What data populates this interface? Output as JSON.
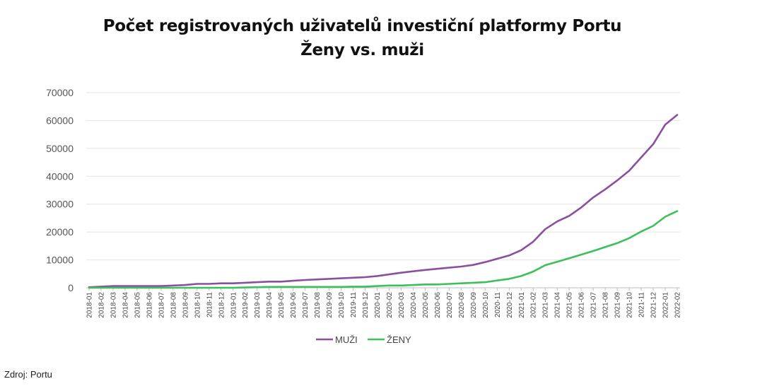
{
  "source": "Zdroj: Portu",
  "chart_data": {
    "type": "line",
    "title": "Počet registrovaných uživatelů investiční platformy Portu",
    "subtitle": "Ženy vs. muži",
    "xlabel": "",
    "ylabel": "",
    "ylim": [
      0,
      70000
    ],
    "yticks": [
      0,
      10000,
      20000,
      30000,
      40000,
      50000,
      60000,
      70000
    ],
    "grid": true,
    "legend": "bottom",
    "x": [
      "2018-01",
      "2018-02",
      "2018-03",
      "2018-04",
      "2018-05",
      "2018-06",
      "2018-07",
      "2018-08",
      "2018-09",
      "2018-10",
      "2018-11",
      "2018-12",
      "2019-01",
      "2019-02",
      "2019-03",
      "2019-04",
      "2019-05",
      "2019-06",
      "2019-07",
      "2019-08",
      "2019-09",
      "2019-10",
      "2019-11",
      "2019-12",
      "2020-01",
      "2020-02",
      "2020-03",
      "2020-04",
      "2020-05",
      "2020-06",
      "2020-07",
      "2020-08",
      "2020-09",
      "2020-10",
      "2020-11",
      "2020-12",
      "2021-01",
      "2021-02",
      "2021-03",
      "2021-04",
      "2021-05",
      "2021-06",
      "2021-07",
      "2021-08",
      "2021-09",
      "2021-10",
      "2021-11",
      "2021-12",
      "2022-01",
      "2022-02"
    ],
    "series": [
      {
        "name": "MUŽI",
        "color": "#8b4fa0",
        "values": [
          200,
          400,
          600,
          600,
          600,
          600,
          600,
          800,
          1000,
          1400,
          1400,
          1600,
          1600,
          1800,
          2000,
          2200,
          2200,
          2500,
          2800,
          3000,
          3200,
          3400,
          3600,
          3800,
          4200,
          4800,
          5400,
          5900,
          6400,
          6800,
          7200,
          7600,
          8200,
          9200,
          10400,
          11600,
          13500,
          16500,
          21000,
          23800,
          25800,
          28800,
          32400,
          35300,
          38500,
          42000,
          46800,
          51500,
          58500,
          62000
        ]
      },
      {
        "name": "ŽENY",
        "color": "#3cc05a",
        "values": [
          0,
          0,
          0,
          0,
          0,
          0,
          0,
          0,
          0,
          0,
          0,
          0,
          0,
          100,
          200,
          300,
          300,
          300,
          300,
          300,
          300,
          300,
          400,
          400,
          600,
          800,
          800,
          1000,
          1200,
          1200,
          1400,
          1600,
          1800,
          2000,
          2600,
          3200,
          4200,
          5800,
          8100,
          9300,
          10600,
          11900,
          13200,
          14600,
          16000,
          17800,
          20200,
          22200,
          25500,
          27500
        ]
      }
    ]
  }
}
